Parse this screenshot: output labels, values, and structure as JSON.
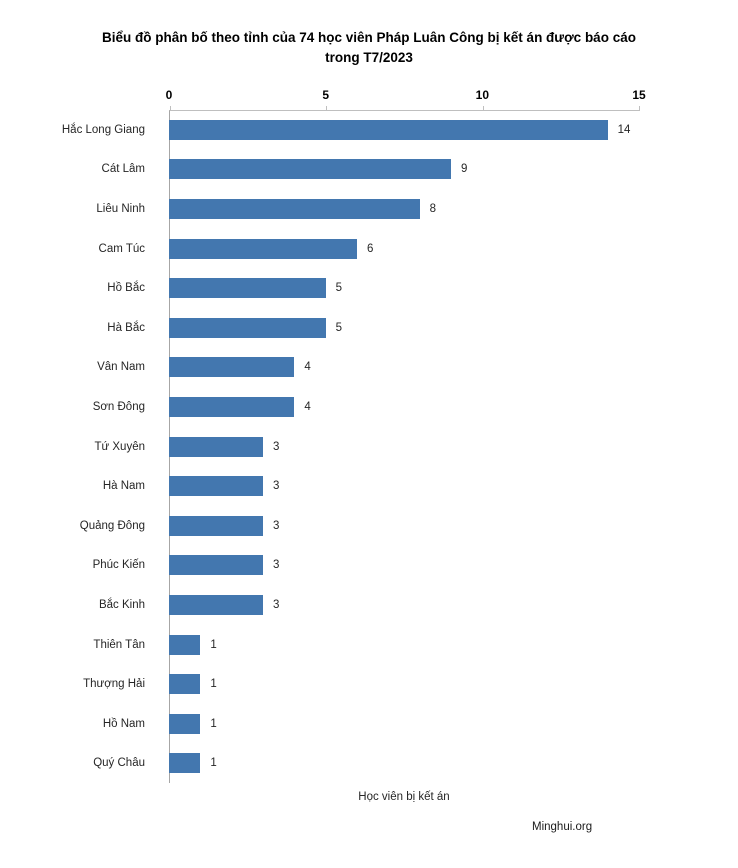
{
  "chart_data": {
    "type": "bar",
    "orientation": "horizontal",
    "title": "Biểu đồ phân bố theo tỉnh của 74 học viên Pháp Luân Công bị kết án được báo cáo trong T7/2023",
    "categories": [
      "Hắc Long Giang",
      "Cát Lâm",
      "Liêu Ninh",
      "Cam Túc",
      "Hồ Bắc",
      "Hà Bắc",
      "Vân Nam",
      "Sơn Đông",
      "Tứ Xuyên",
      "Hà Nam",
      "Quảng Đông",
      "Phúc Kiến",
      "Bắc Kinh",
      "Thiên Tân",
      "Thượng Hải",
      "Hồ Nam",
      "Quý Châu"
    ],
    "values": [
      14,
      9,
      8,
      6,
      5,
      5,
      4,
      4,
      3,
      3,
      3,
      3,
      3,
      1,
      1,
      1,
      1
    ],
    "xlabel": "Học viên bị kết án",
    "ylabel": "",
    "xlim": [
      0,
      15
    ],
    "xticks": [
      0,
      5,
      10,
      15
    ],
    "grid": false,
    "legend": "none",
    "data_labels": true,
    "bar_color": "#4377af",
    "axis_line_color": "#bfbfbf"
  },
  "source": {
    "label": "Minghui.org"
  }
}
